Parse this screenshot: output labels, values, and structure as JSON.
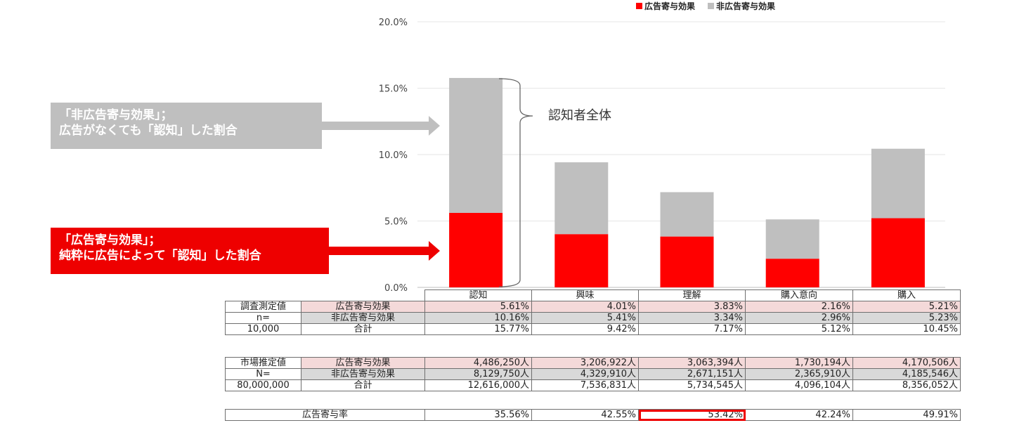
{
  "legend": {
    "ad_label": "広告寄与効果",
    "nonad_label": "非広告寄与効果",
    "ad_color": "#ff0000",
    "nonad_color": "#bfbfbf"
  },
  "callouts": {
    "nonad_line1": "「非広告寄与効果」；",
    "nonad_line2": "広告がなくても「認知」した割合",
    "ad_line1": "「広告寄与効果」；",
    "ad_line2": "純粋に広告によって「認知」した割合",
    "brace_label": "認知者全体"
  },
  "chart_data": {
    "type": "bar",
    "stacked": true,
    "categories": [
      "認知",
      "興味",
      "理解",
      "購入意向",
      "購入"
    ],
    "series": [
      {
        "name": "広告寄与効果",
        "values": [
          5.61,
          4.01,
          3.83,
          2.16,
          5.21
        ]
      },
      {
        "name": "非広告寄与効果",
        "values": [
          10.16,
          5.41,
          3.34,
          2.96,
          5.23
        ]
      }
    ],
    "ylim": [
      0,
      20
    ],
    "yticks": [
      "0.0%",
      "5.0%",
      "10.0%",
      "15.0%",
      "20.0%"
    ],
    "grid": true,
    "legend_position": "top-right"
  },
  "survey_table": {
    "row_header": [
      "調査測定値",
      "n=",
      "10,000"
    ],
    "rows": [
      {
        "label": "広告寄与効果",
        "values": [
          "5.61%",
          "4.01%",
          "3.83%",
          "2.16%",
          "5.21%"
        ]
      },
      {
        "label": "非広告寄与効果",
        "values": [
          "10.16%",
          "5.41%",
          "3.34%",
          "2.96%",
          "5.23%"
        ]
      },
      {
        "label": "合計",
        "values": [
          "15.77%",
          "9.42%",
          "7.17%",
          "5.12%",
          "10.45%"
        ]
      }
    ]
  },
  "market_table": {
    "row_header": [
      "市場推定値",
      "N=",
      "80,000,000"
    ],
    "rows": [
      {
        "label": "広告寄与効果",
        "values": [
          "4,486,250人",
          "3,206,922人",
          "3,063,394人",
          "1,730,194人",
          "4,170,506人"
        ]
      },
      {
        "label": "非広告寄与効果",
        "values": [
          "8,129,750人",
          "4,329,910人",
          "2,671,151人",
          "2,365,910人",
          "4,185,546人"
        ]
      },
      {
        "label": "合計",
        "values": [
          "12,616,000人",
          "7,536,831人",
          "5,734,545人",
          "4,096,104人",
          "8,356,052人"
        ]
      }
    ]
  },
  "rate_table": {
    "label": "広告寄与率",
    "values": [
      "35.56%",
      "42.55%",
      "53.42%",
      "42.24%",
      "49.91%"
    ],
    "highlight_color": "#ee0000"
  }
}
